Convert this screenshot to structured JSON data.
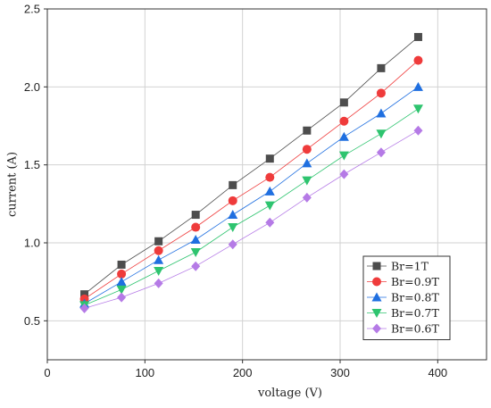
{
  "chart_data": {
    "type": "line",
    "xlabel": "voltage (V)",
    "ylabel": "current (A)",
    "xlim": [
      0,
      450
    ],
    "ylim": [
      0.25,
      2.5
    ],
    "x_ticks": [
      0,
      100,
      200,
      300,
      400
    ],
    "y_ticks": [
      0.5,
      1.0,
      1.5,
      2.0,
      2.5
    ],
    "x_tick_labels": [
      "0",
      "100",
      "200",
      "300",
      "400"
    ],
    "y_tick_labels": [
      "0.5",
      "1.0",
      "1.5",
      "2.0",
      "2.5"
    ],
    "grid": true,
    "legend_position": "bottom-right",
    "x": [
      38,
      76,
      114,
      152,
      190,
      228,
      266,
      304,
      342,
      380
    ],
    "series": [
      {
        "name": "Br=1T",
        "marker": "square",
        "color": "#4d4d4d",
        "values": [
          0.67,
          0.86,
          1.01,
          1.18,
          1.37,
          1.54,
          1.72,
          1.9,
          2.12,
          2.32
        ]
      },
      {
        "name": "Br=0.9T",
        "marker": "circle",
        "color": "#ef3b3b",
        "values": [
          0.64,
          0.8,
          0.95,
          1.1,
          1.27,
          1.42,
          1.6,
          1.78,
          1.96,
          2.17
        ]
      },
      {
        "name": "Br=0.8T",
        "marker": "triangle-up",
        "color": "#1f6fe0",
        "values": [
          0.61,
          0.75,
          0.89,
          1.02,
          1.18,
          1.33,
          1.51,
          1.68,
          1.83,
          2.0
        ]
      },
      {
        "name": "Br=0.7T",
        "marker": "triangle-down",
        "color": "#2ec46f",
        "values": [
          0.6,
          0.7,
          0.82,
          0.94,
          1.1,
          1.24,
          1.4,
          1.56,
          1.7,
          1.86
        ]
      },
      {
        "name": "Br=0.6T",
        "marker": "diamond",
        "color": "#b57ae6",
        "values": [
          0.58,
          0.65,
          0.74,
          0.85,
          0.99,
          1.13,
          1.29,
          1.44,
          1.58,
          1.72
        ]
      }
    ]
  }
}
